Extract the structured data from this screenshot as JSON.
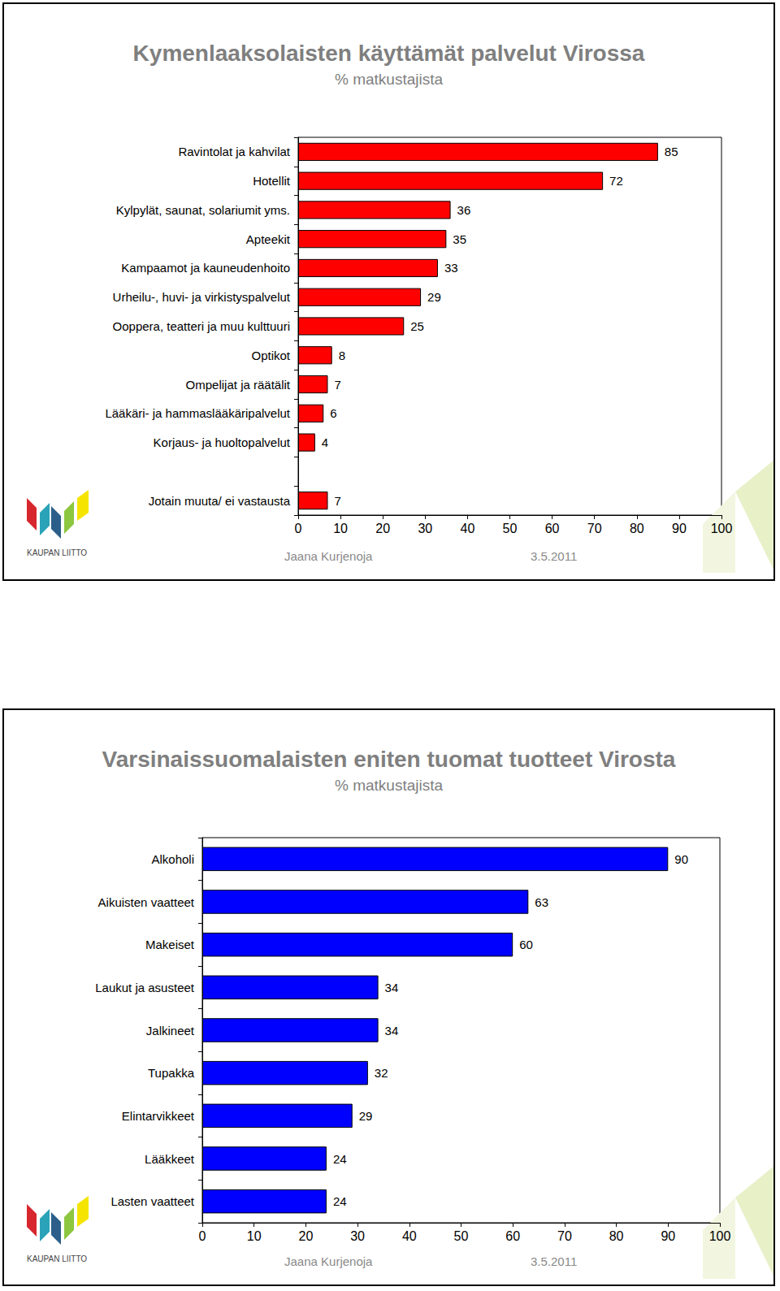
{
  "chart_data": [
    {
      "type": "bar",
      "title": "Kymenlaaksolaisten käyttämät palvelut Virossa",
      "subtitle": "% matkustajista",
      "orientation": "horizontal",
      "categories": [
        "Ravintolat ja kahvilat",
        "Hotellit",
        "Kylpylät, saunat, solariumit yms.",
        "Apteekit",
        "Kampaamot ja kauneudenhoito",
        "Urheilu-, huvi- ja virkistyspalvelut",
        "Ooppera, teatteri ja muu kulttuuri",
        "Optikot",
        "Ompelijat ja räätälit",
        "Lääkäri- ja hammaslääkäripalvelut",
        "Korjaus- ja huoltopalvelut",
        null,
        "Jotain muuta/ ei vastausta"
      ],
      "values": [
        85,
        72,
        36,
        35,
        33,
        29,
        25,
        8,
        7,
        6,
        4,
        null,
        7
      ],
      "color": "#ff0000",
      "xlim": [
        0,
        100
      ],
      "xticks": [
        0,
        10,
        20,
        30,
        40,
        50,
        60,
        70,
        80,
        90,
        100
      ],
      "grid": false,
      "data_labels": true,
      "annotations": [
        "Jaana Kurjenoja",
        "3.5.2011",
        "KAUPAN LIITTO"
      ]
    },
    {
      "type": "bar",
      "title": "Varsinaissuomalaisten eniten tuomat tuotteet Virosta",
      "subtitle": "% matkustajista",
      "orientation": "horizontal",
      "categories": [
        "Alkoholi",
        "Aikuisten vaatteet",
        "Makeiset",
        "Laukut ja asusteet",
        "Jalkineet",
        "Tupakka",
        "Elintarvikkeet",
        "Lääkkeet",
        "Lasten vaatteet"
      ],
      "values": [
        90,
        63,
        60,
        34,
        34,
        32,
        29,
        24,
        24
      ],
      "color": "#0000ff",
      "xlim": [
        0,
        100
      ],
      "xticks": [
        0,
        10,
        20,
        30,
        40,
        50,
        60,
        70,
        80,
        90,
        100
      ],
      "grid": false,
      "data_labels": true,
      "annotations": [
        "Jaana Kurjenoja",
        "3.5.2011",
        "KAUPAN LIITTO"
      ]
    }
  ]
}
